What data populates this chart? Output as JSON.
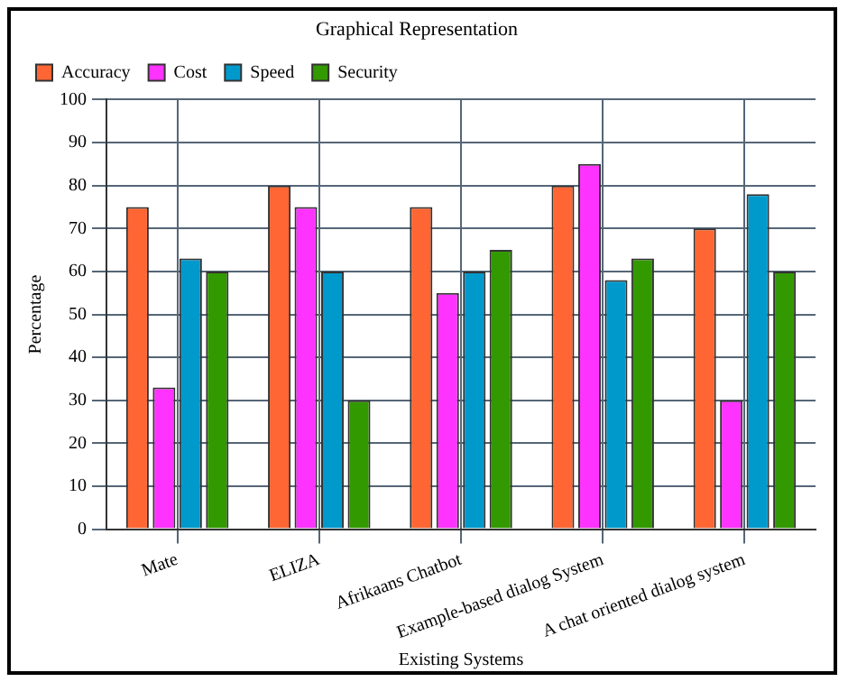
{
  "chart_data": {
    "type": "bar",
    "title": "Graphical Representation",
    "xlabel": "Existing Systems",
    "ylabel": "Percentage",
    "categories": [
      "Mate",
      "ELIZA",
      "Afrikaans Chatbot",
      "Example-based dialog System",
      "A chat oriented dialog system"
    ],
    "series": [
      {
        "name": "Accuracy",
        "color": "#ff6633",
        "values": [
          75,
          80,
          75,
          80,
          70
        ]
      },
      {
        "name": "Cost",
        "color": "#ff33ff",
        "values": [
          33,
          75,
          55,
          85,
          30
        ]
      },
      {
        "name": "Speed",
        "color": "#0099cc",
        "values": [
          63,
          60,
          60,
          58,
          78
        ]
      },
      {
        "name": "Security",
        "color": "#339900",
        "values": [
          60,
          30,
          65,
          63,
          60
        ]
      }
    ],
    "ylim": [
      0,
      100
    ],
    "yticks": [
      0,
      10,
      20,
      30,
      40,
      50,
      60,
      70,
      80,
      90,
      100
    ],
    "grid": true,
    "legend": "top left"
  }
}
